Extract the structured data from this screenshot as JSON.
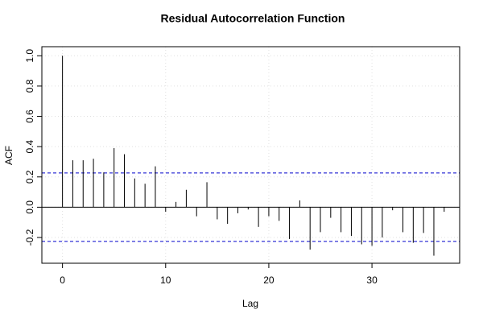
{
  "chart_data": {
    "type": "acf",
    "title": "Residual Autocorrelation Function",
    "xlabel": "Lag",
    "ylabel": "ACF",
    "x": [
      0,
      1,
      2,
      3,
      4,
      5,
      6,
      7,
      8,
      9,
      10,
      11,
      12,
      13,
      14,
      15,
      16,
      17,
      18,
      19,
      20,
      21,
      22,
      23,
      24,
      25,
      26,
      27,
      28,
      29,
      30,
      31,
      32,
      33,
      34,
      35,
      36,
      37
    ],
    "values": [
      1.0,
      0.31,
      0.31,
      0.32,
      0.23,
      0.39,
      0.35,
      0.19,
      0.155,
      0.27,
      -0.03,
      0.035,
      0.115,
      -0.06,
      0.165,
      -0.08,
      -0.11,
      -0.04,
      -0.015,
      -0.13,
      -0.06,
      -0.09,
      -0.21,
      0.045,
      -0.28,
      -0.165,
      -0.07,
      -0.165,
      -0.19,
      -0.245,
      -0.255,
      -0.2,
      -0.02,
      -0.165,
      -0.235,
      -0.17,
      -0.32,
      -0.03
    ],
    "color": "#000000",
    "conf_bound": 0.226,
    "conf_color": "#0000cc",
    "xlim": [
      -2,
      38.5
    ],
    "ylim": [
      -0.37,
      1.06
    ],
    "xticks": [
      0,
      10,
      20,
      30
    ],
    "yticks": [
      {
        "value": 0.0,
        "label": "0.0"
      },
      0.2,
      0.4,
      0.6,
      0.8,
      {
        "value": 1.0,
        "label": "1.0"
      },
      -0.2
    ],
    "grid": true
  }
}
